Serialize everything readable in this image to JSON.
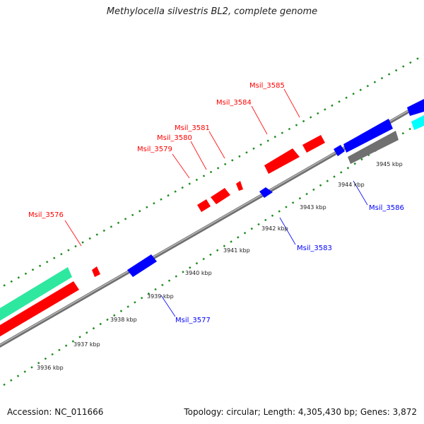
{
  "title": "Methylocella silvestris BL2, complete genome",
  "footer": {
    "accession": "Accession: NC_011666",
    "summary": "Topology: circular; Length: 4,305,430 bp; Genes: 3,872"
  },
  "colors": {
    "forward": "#ff0000",
    "reverse": "#0000ff",
    "backbone": "#808080",
    "ticks": "#1e8c1e",
    "rna": "#2ee8a0",
    "cyan": "#00ffff",
    "other": "#707070"
  },
  "scale_labels": [
    "3936 kbp",
    "3937 kbp",
    "3938 kbp",
    "3939 kbp",
    "3940 kbp",
    "3941 kbp",
    "3942 kbp",
    "3943 kbp",
    "3944 kbp",
    "3945 kbp"
  ],
  "gene_labels": {
    "forward": [
      "Msil_3576",
      "Msil_3579",
      "Msil_3580",
      "Msil_3581",
      "Msil_3584",
      "Msil_3585"
    ],
    "reverse": [
      "Msil_3577",
      "Msil_3583",
      "Msil_3586"
    ]
  }
}
